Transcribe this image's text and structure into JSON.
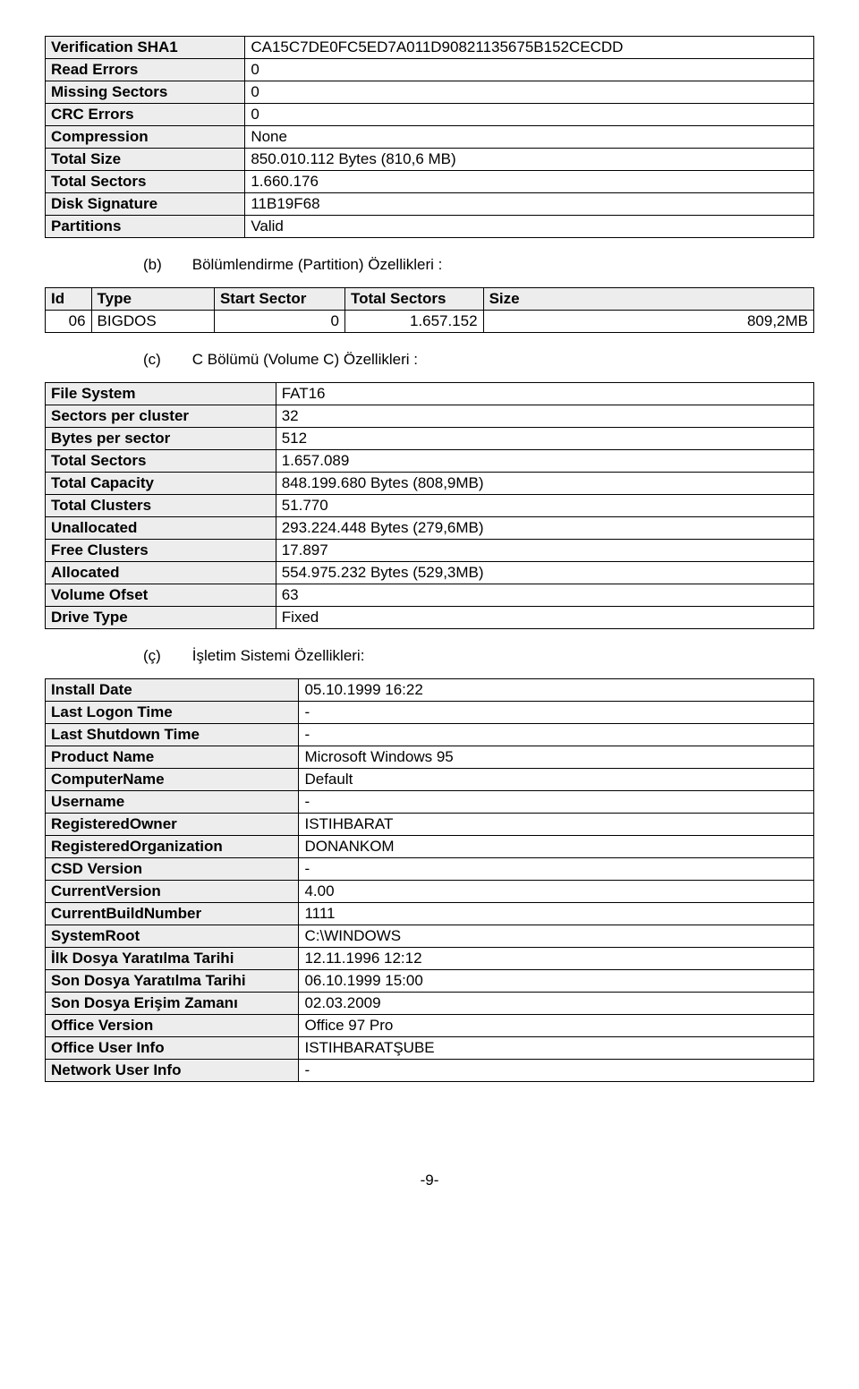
{
  "table1": {
    "rows": [
      {
        "label": "Verification SHA1",
        "value": "CA15C7DE0FC5ED7A011D90821135675B152CECDD"
      },
      {
        "label": "Read Errors",
        "value": "0"
      },
      {
        "label": "Missing Sectors",
        "value": "0"
      },
      {
        "label": "CRC Errors",
        "value": "0"
      },
      {
        "label": "Compression",
        "value": "None"
      },
      {
        "label": "Total Size",
        "value": "850.010.112 Bytes (810,6 MB)"
      },
      {
        "label": "Total Sectors",
        "value": "1.660.176"
      },
      {
        "label": "Disk Signature",
        "value": "11B19F68"
      },
      {
        "label": "Partitions",
        "value": "Valid"
      }
    ]
  },
  "section_b": {
    "tag": "(b)",
    "text": "Bölümlendirme (Partition) Özellikleri :"
  },
  "table2": {
    "headers": [
      "Id",
      "Type",
      "Start Sector",
      "Total Sectors",
      "Size"
    ],
    "rows": [
      {
        "c1": "06",
        "c2": "BIGDOS",
        "c3": "0",
        "c4": "1.657.152",
        "c5": "809,2MB"
      }
    ]
  },
  "section_c": {
    "tag": "(c)",
    "text": "C Bölümü (Volume C) Özellikleri :"
  },
  "table3": {
    "rows": [
      {
        "label": "File System",
        "value": "FAT16"
      },
      {
        "label": "Sectors per cluster",
        "value": "32"
      },
      {
        "label": "Bytes per sector",
        "value": "512"
      },
      {
        "label": "Total Sectors",
        "value": "1.657.089"
      },
      {
        "label": "Total Capacity",
        "value": "848.199.680 Bytes (808,9MB)"
      },
      {
        "label": "Total Clusters",
        "value": "51.770"
      },
      {
        "label": "Unallocated",
        "value": "293.224.448 Bytes (279,6MB)"
      },
      {
        "label": "Free Clusters",
        "value": "17.897"
      },
      {
        "label": "Allocated",
        "value": "554.975.232 Bytes (529,3MB)"
      },
      {
        "label": "Volume Ofset",
        "value": "63"
      },
      {
        "label": "Drive Type",
        "value": "Fixed"
      }
    ]
  },
  "section_d": {
    "tag": "(ç)",
    "text": "İşletim Sistemi Özellikleri:"
  },
  "table4": {
    "rows": [
      {
        "label": "Install Date",
        "value": "05.10.1999 16:22"
      },
      {
        "label": "Last Logon Time",
        "value": "-"
      },
      {
        "label": "Last Shutdown Time",
        "value": "-"
      },
      {
        "label": "Product Name",
        "value": "Microsoft Windows 95"
      },
      {
        "label": "ComputerName",
        "value": "Default"
      },
      {
        "label": "Username",
        "value": "-"
      },
      {
        "label": "RegisteredOwner",
        "value": "ISTIHBARAT"
      },
      {
        "label": "RegisteredOrganization",
        "value": "DONANKOM"
      },
      {
        "label": "CSD Version",
        "value": "-"
      },
      {
        "label": "CurrentVersion",
        "value": "4.00"
      },
      {
        "label": "CurrentBuildNumber",
        "value": "1111"
      },
      {
        "label": "SystemRoot",
        "value": "C:\\WINDOWS"
      },
      {
        "label": "İlk Dosya Yaratılma Tarihi",
        "value": "12.11.1996 12:12"
      },
      {
        "label": "Son Dosya Yaratılma Tarihi",
        "value": "06.10.1999 15:00"
      },
      {
        "label": "Son Dosya Erişim Zamanı",
        "value": "02.03.2009"
      },
      {
        "label": "Office Version",
        "value": "Office 97 Pro"
      },
      {
        "label": "Office User Info",
        "value": "ISTIHBARATŞUBE"
      },
      {
        "label": "Network User Info",
        "value": "-"
      }
    ]
  },
  "page_number": "-9-",
  "style": {
    "bg_shade": "#ededed",
    "border_color": "#000000",
    "font_family": "Arial, sans-serif"
  }
}
